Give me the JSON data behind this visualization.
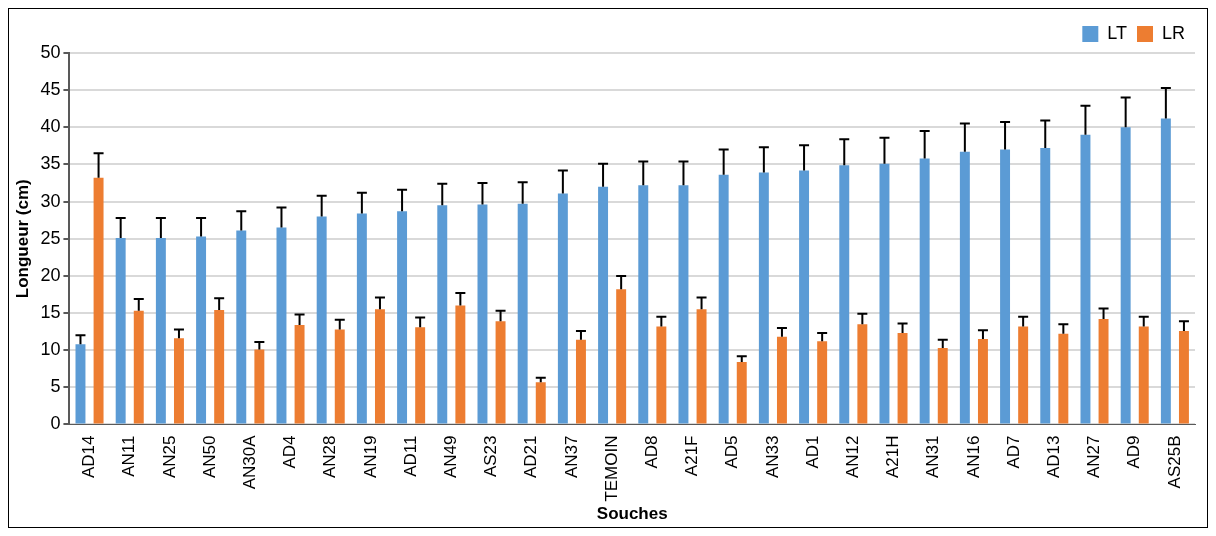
{
  "chart_data": {
    "type": "bar",
    "xlabel": "Souches",
    "ylabel": "Longueur (cm)",
    "categories": [
      "AD14",
      "AN11",
      "AN25",
      "AN50",
      "AN30A",
      "AD4",
      "AN28",
      "AN19",
      "AD11",
      "AN49",
      "AS23",
      "AD21",
      "AN37",
      "TEMOIN",
      "AD8",
      "A21F",
      "AD5",
      "AN33",
      "AD1",
      "AN12",
      "A21H",
      "AN31",
      "AN16",
      "AD7",
      "AD13",
      "AN27",
      "AD9",
      "AS25B"
    ],
    "series": [
      {
        "name": "LT",
        "color": "#5b9bd5",
        "values": [
          10.8,
          25.1,
          25.1,
          25.3,
          26.1,
          26.5,
          28,
          28.4,
          28.7,
          29.5,
          29.6,
          29.7,
          31.1,
          32,
          32.2,
          32.2,
          33.6,
          33.9,
          34.2,
          34.9,
          35.1,
          35.8,
          36.7,
          37,
          37.2,
          39,
          40,
          41.2
        ],
        "errors": [
          [
            10.8,
            12
          ],
          [
            25.1,
            27.8
          ],
          [
            25.1,
            27.8
          ],
          [
            25.3,
            27.8
          ],
          [
            26.1,
            28.7
          ],
          [
            26.5,
            29.2
          ],
          [
            28,
            30.8
          ],
          [
            28.4,
            31.2
          ],
          [
            28.7,
            31.6
          ],
          [
            29.5,
            32.4
          ],
          [
            29.6,
            32.5
          ],
          [
            29.7,
            32.6
          ],
          [
            31.1,
            34.2
          ],
          [
            32,
            35.1
          ],
          [
            32.2,
            35.4
          ],
          [
            32.2,
            35.4
          ],
          [
            33.6,
            37
          ],
          [
            33.9,
            37.3
          ],
          [
            34.2,
            37.6
          ],
          [
            34.9,
            38.4
          ],
          [
            35.1,
            38.6
          ],
          [
            35.8,
            39.5
          ],
          [
            36.7,
            40.5
          ],
          [
            37,
            40.7
          ],
          [
            37.2,
            40.9
          ],
          [
            39,
            42.9
          ],
          [
            40,
            44
          ],
          [
            41.2,
            45.3
          ]
        ]
      },
      {
        "name": "LR",
        "color": "#ed7d31",
        "values": [
          33.2,
          15.3,
          11.6,
          15.4,
          10.1,
          13.4,
          12.8,
          15.5,
          13.1,
          16,
          13.9,
          5.7,
          11.4,
          18.2,
          13.2,
          15.5,
          8.4,
          11.8,
          11.2,
          13.5,
          12.3,
          10.3,
          11.5,
          13.2,
          12.2,
          14.2,
          13.2,
          12.6
        ],
        "errors": [
          [
            33.2,
            36.5
          ],
          [
            15.3,
            16.9
          ],
          [
            11.6,
            12.8
          ],
          [
            15.4,
            17
          ],
          [
            10.1,
            11.1
          ],
          [
            13.4,
            14.8
          ],
          [
            12.8,
            14.1
          ],
          [
            15.5,
            17.1
          ],
          [
            13.1,
            14.4
          ],
          [
            16,
            17.7
          ],
          [
            13.9,
            15.3
          ],
          [
            5.7,
            6.3
          ],
          [
            11.4,
            12.6
          ],
          [
            18.2,
            20
          ],
          [
            13.2,
            14.5
          ],
          [
            15.5,
            17.1
          ],
          [
            8.4,
            9.2
          ],
          [
            11.8,
            13
          ],
          [
            11.2,
            12.3
          ],
          [
            13.5,
            14.9
          ],
          [
            12.3,
            13.6
          ],
          [
            10.3,
            11.4
          ],
          [
            11.5,
            12.7
          ],
          [
            13.2,
            14.5
          ],
          [
            12.2,
            13.5
          ],
          [
            14.2,
            15.6
          ],
          [
            13.2,
            14.5
          ],
          [
            12.6,
            13.9
          ]
        ]
      }
    ],
    "ylim": [
      0,
      50
    ],
    "yticks": [
      0,
      5,
      10,
      15,
      20,
      25,
      30,
      35,
      40,
      45,
      50
    ],
    "grid": "y",
    "legend": "top right"
  }
}
